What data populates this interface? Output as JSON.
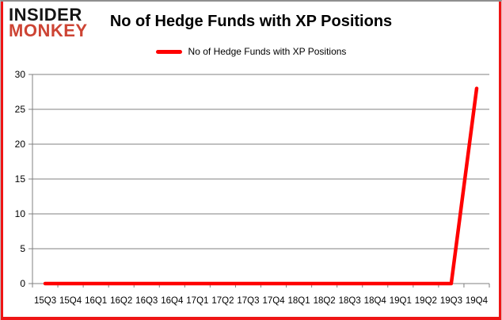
{
  "header": {
    "logo_line1": "INSIDER",
    "logo_line2": "MONKEY",
    "title": "No of Hedge Funds with XP Positions"
  },
  "legend": {
    "label": "No of Hedge Funds with XP Positions"
  },
  "chart_data": {
    "type": "line",
    "title": "No of Hedge Funds with XP Positions",
    "categories": [
      "15Q3",
      "15Q4",
      "16Q1",
      "16Q2",
      "16Q3",
      "16Q4",
      "17Q1",
      "17Q2",
      "17Q3",
      "17Q4",
      "18Q1",
      "18Q2",
      "18Q3",
      "18Q4",
      "19Q1",
      "19Q2",
      "19Q3",
      "19Q4"
    ],
    "series": [
      {
        "name": "No of Hedge Funds with XP Positions",
        "color": "#ff0000",
        "values": [
          0,
          0,
          0,
          0,
          0,
          0,
          0,
          0,
          0,
          0,
          0,
          0,
          0,
          0,
          0,
          0,
          0,
          28
        ]
      }
    ],
    "xlabel": "",
    "ylabel": "",
    "ylim": [
      0,
      30
    ],
    "yticks": [
      0,
      5,
      10,
      15,
      20,
      25,
      30
    ],
    "grid": true,
    "legend_position": "top"
  },
  "colors": {
    "series_line": "#ff0000",
    "gridline": "#808080",
    "axis": "#808080",
    "tick_label": "#000000",
    "logo_insider": "#141414",
    "logo_monkey": "#cd4434",
    "frame_red": "#ee1515",
    "frame_grey": "#8f8f8f",
    "background": "#ffffff"
  }
}
